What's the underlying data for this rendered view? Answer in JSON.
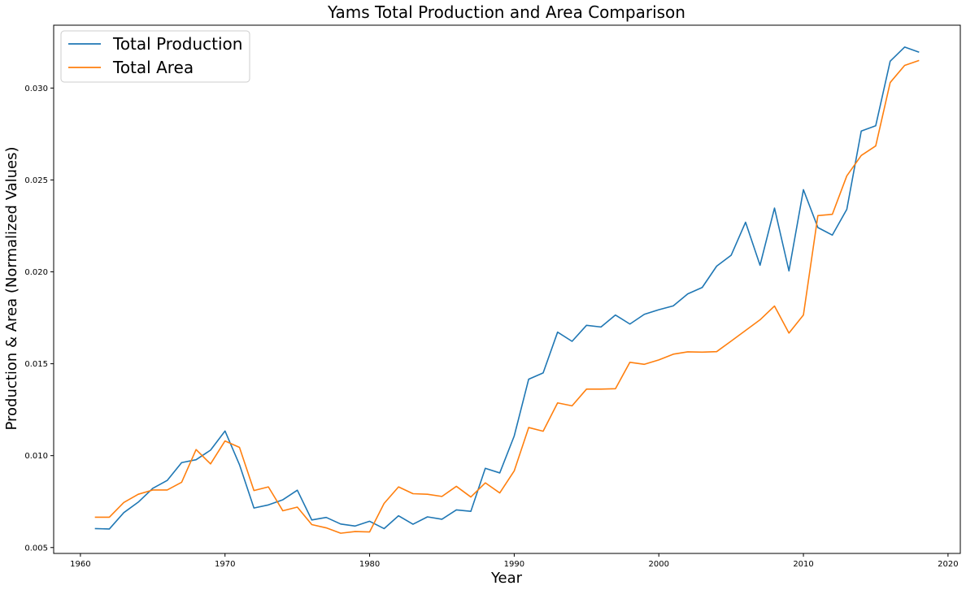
{
  "chart_data": {
    "type": "line",
    "title": "Yams Total Production and Area Comparison",
    "xlabel": "Year",
    "ylabel": "Production & Area (Normalized Values)",
    "xlim": [
      1958.15,
      2020.85
    ],
    "ylim": [
      0.00468,
      0.03342
    ],
    "xticks": [
      1960,
      1970,
      1980,
      1990,
      2000,
      2010,
      2020
    ],
    "yticks": [
      0.005,
      0.01,
      0.015,
      0.02,
      0.025,
      0.03
    ],
    "ytick_labels": [
      "0.005",
      "0.010",
      "0.015",
      "0.020",
      "0.025",
      "0.030"
    ],
    "grid": false,
    "legend": "top-left",
    "x": [
      1961,
      1962,
      1963,
      1964,
      1965,
      1966,
      1967,
      1968,
      1969,
      1970,
      1971,
      1972,
      1973,
      1974,
      1975,
      1976,
      1977,
      1978,
      1979,
      1980,
      1981,
      1982,
      1983,
      1984,
      1985,
      1986,
      1987,
      1988,
      1989,
      1990,
      1991,
      1992,
      1993,
      1994,
      1995,
      1996,
      1997,
      1998,
      1999,
      2000,
      2001,
      2002,
      2003,
      2004,
      2005,
      2006,
      2007,
      2008,
      2009,
      2010,
      2011,
      2012,
      2013,
      2014,
      2015,
      2016,
      2017,
      2018
    ],
    "series": [
      {
        "name": "Total Production",
        "color": "#1f77b4",
        "values": [
          0.00603,
          0.00601,
          0.0069,
          0.00747,
          0.00822,
          0.00865,
          0.00962,
          0.00978,
          0.0103,
          0.01134,
          0.00951,
          0.00715,
          0.00732,
          0.0076,
          0.00812,
          0.0065,
          0.00664,
          0.00628,
          0.00617,
          0.00643,
          0.00603,
          0.00673,
          0.00627,
          0.00667,
          0.00654,
          0.00705,
          0.00697,
          0.00931,
          0.00906,
          0.01107,
          0.01416,
          0.0145,
          0.01672,
          0.01622,
          0.01709,
          0.017,
          0.01765,
          0.01716,
          0.01769,
          0.01794,
          0.01815,
          0.0188,
          0.01915,
          0.02031,
          0.0209,
          0.0227,
          0.02036,
          0.02347,
          0.02005,
          0.02447,
          0.02241,
          0.022,
          0.0234,
          0.02766,
          0.02795,
          0.03146,
          0.03223,
          0.03195
        ]
      },
      {
        "name": "Total Area",
        "color": "#ff7f0e",
        "values": [
          0.00665,
          0.00665,
          0.00745,
          0.0079,
          0.00813,
          0.00813,
          0.00855,
          0.01033,
          0.00955,
          0.0108,
          0.01045,
          0.0081,
          0.0083,
          0.007,
          0.0072,
          0.00625,
          0.00607,
          0.00578,
          0.00587,
          0.00585,
          0.0074,
          0.0083,
          0.00793,
          0.0079,
          0.00778,
          0.00833,
          0.00775,
          0.00852,
          0.00797,
          0.00917,
          0.01153,
          0.01133,
          0.01287,
          0.01271,
          0.01362,
          0.01362,
          0.01364,
          0.01508,
          0.01497,
          0.01521,
          0.01552,
          0.01565,
          0.01563,
          0.01566,
          0.01623,
          0.01681,
          0.01739,
          0.01814,
          0.01667,
          0.01765,
          0.02306,
          0.02313,
          0.02522,
          0.02633,
          0.02685,
          0.0303,
          0.03123,
          0.0315
        ]
      }
    ]
  }
}
